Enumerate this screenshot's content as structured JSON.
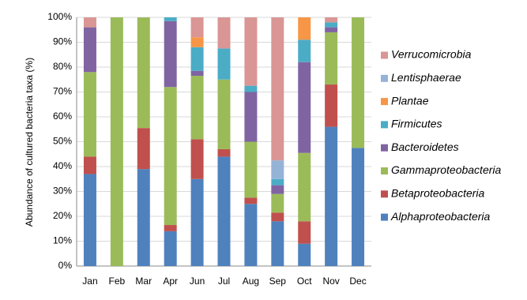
{
  "chart_data": {
    "type": "stacked-bar",
    "y_label": "Abundance of cultured bacteria taxa (%)",
    "categories": [
      "Jan",
      "Feb",
      "Mar",
      "Apr",
      "Jun",
      "Jul",
      "Aug",
      "Sep",
      "Oct",
      "Nov",
      "Dec"
    ],
    "series": [
      {
        "name": "Alphaproteobacteria",
        "color": "#4f81bd",
        "values": [
          37,
          0,
          39,
          14,
          35,
          44,
          25,
          18,
          9,
          56,
          47.5
        ]
      },
      {
        "name": "Betaproteobacteria",
        "color": "#c0504d",
        "values": [
          7,
          0,
          16.5,
          2.5,
          16,
          3,
          2.5,
          3.5,
          9,
          17,
          0
        ]
      },
      {
        "name": "Gammaproteobacteria",
        "color": "#9bbb59",
        "values": [
          34,
          100,
          44.5,
          55.5,
          25.5,
          28,
          22.5,
          7.5,
          27.5,
          21,
          52.5
        ]
      },
      {
        "name": "Bacteroidetes",
        "color": "#8064a2",
        "values": [
          18,
          0,
          0,
          26.5,
          2,
          0,
          20,
          3.5,
          36.5,
          2,
          0
        ]
      },
      {
        "name": "Firmicutes",
        "color": "#4bacc6",
        "values": [
          0,
          0,
          0,
          1.5,
          9.5,
          12.5,
          2.5,
          2.5,
          9,
          2,
          0
        ]
      },
      {
        "name": "Plantae",
        "color": "#f79646",
        "values": [
          0,
          0,
          0,
          0,
          4,
          0,
          0,
          0,
          9,
          0,
          0
        ]
      },
      {
        "name": "Lentisphaerae",
        "color": "#95b3d7",
        "values": [
          0,
          0,
          0,
          0,
          0,
          0,
          0,
          7.5,
          0,
          0,
          0
        ]
      },
      {
        "name": "Verrucomicrobia",
        "color": "#d99694",
        "values": [
          4,
          0,
          0,
          0,
          8,
          12.5,
          27.5,
          57.5,
          0,
          2,
          0
        ]
      }
    ],
    "ylim": [
      0,
      100
    ],
    "yticks": [
      {
        "value": 0,
        "label": "0%"
      },
      {
        "value": 10,
        "label": "10%"
      },
      {
        "value": 20,
        "label": "20%"
      },
      {
        "value": 30,
        "label": "30%"
      },
      {
        "value": 40,
        "label": "40%"
      },
      {
        "value": 50,
        "label": "50%"
      },
      {
        "value": 60,
        "label": "60%"
      },
      {
        "value": 70,
        "label": "70%"
      },
      {
        "value": 80,
        "label": "80%"
      },
      {
        "value": 90,
        "label": "90%"
      },
      {
        "value": 100,
        "label": "100%"
      }
    ],
    "grid": true,
    "legend": "right"
  }
}
